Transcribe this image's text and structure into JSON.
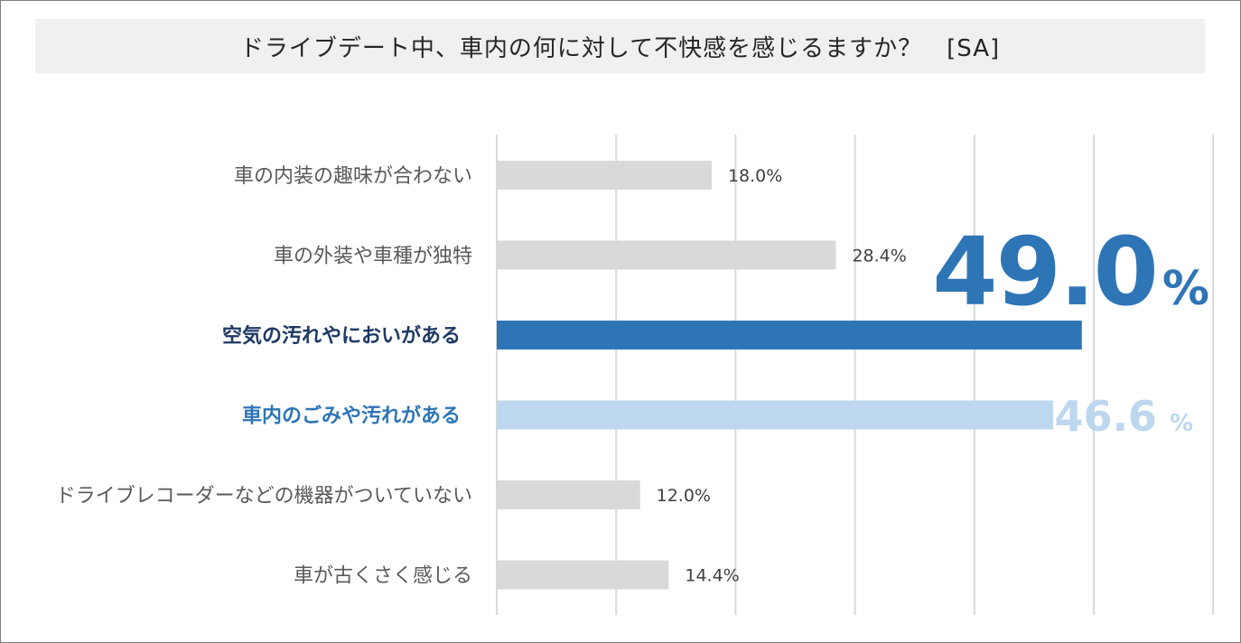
{
  "title": "ドライブデート中、車内の何に対して不快感を感じるますか？　[SA]",
  "colors": {
    "bar_default": "#d9d9d9",
    "bar_highlight_1": "#2e75b6",
    "bar_highlight_2": "#bdd7ee",
    "label_default": "#595959",
    "label_highlight_1": "#1f3864",
    "label_highlight_2": "#2e75b6",
    "gridline": "#d9d9d9"
  },
  "chart_data": {
    "type": "bar",
    "orientation": "horizontal",
    "categories": [
      "車の内装の趣味が合わない",
      "車の外装や車種が独特",
      "空気の汚れやにおいがある",
      "車内のごみや汚れがある",
      "ドライブレコーダーなどの機器がついていない",
      "車が古くさく感じる"
    ],
    "values": [
      18.0,
      28.4,
      49.0,
      46.6,
      12.0,
      14.4
    ],
    "value_labels": [
      "18.0%",
      "28.4%",
      "",
      "",
      "12.0%",
      "14.4%"
    ],
    "highlights": [
      null,
      null,
      {
        "number": "49.0",
        "unit": "%",
        "style": "primary"
      },
      {
        "number": "46.6",
        "unit": "%",
        "style": "secondary"
      },
      null,
      null
    ],
    "xlim": [
      0,
      60
    ],
    "gridlines": [
      0,
      10,
      20,
      30,
      40,
      50,
      60
    ],
    "grid": true,
    "legend": false
  }
}
